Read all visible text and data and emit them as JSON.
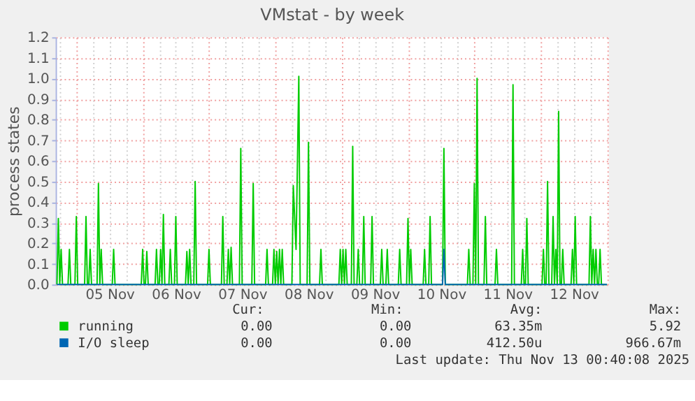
{
  "chart_data": {
    "type": "line",
    "title": "VMstat - by week",
    "ylabel": "process states",
    "xlim": [
      "2025-11-04T16:30",
      "2025-11-13T00:40"
    ],
    "xticks": [
      {
        "value": "2025-11-04T18:00",
        "label": null
      },
      {
        "value": "2025-11-05T00:00",
        "label": null
      },
      {
        "value": "2025-11-05T06:00",
        "label": null
      },
      {
        "value": "2025-11-05T12:00",
        "label": "05 Nov"
      },
      {
        "value": "2025-11-05T18:00",
        "label": null
      },
      {
        "value": "2025-11-06T00:00",
        "label": null
      },
      {
        "value": "2025-11-06T06:00",
        "label": null
      },
      {
        "value": "2025-11-06T12:00",
        "label": "06 Nov"
      },
      {
        "value": "2025-11-06T18:00",
        "label": null
      },
      {
        "value": "2025-11-07T00:00",
        "label": null
      },
      {
        "value": "2025-11-07T06:00",
        "label": null
      },
      {
        "value": "2025-11-07T12:00",
        "label": "07 Nov"
      },
      {
        "value": "2025-11-07T18:00",
        "label": null
      },
      {
        "value": "2025-11-08T00:00",
        "label": null
      },
      {
        "value": "2025-11-08T06:00",
        "label": null
      },
      {
        "value": "2025-11-08T12:00",
        "label": "08 Nov"
      },
      {
        "value": "2025-11-08T18:00",
        "label": null
      },
      {
        "value": "2025-11-09T00:00",
        "label": null
      },
      {
        "value": "2025-11-09T06:00",
        "label": null
      },
      {
        "value": "2025-11-09T12:00",
        "label": "09 Nov"
      },
      {
        "value": "2025-11-09T18:00",
        "label": null
      },
      {
        "value": "2025-11-10T00:00",
        "label": null
      },
      {
        "value": "2025-11-10T06:00",
        "label": null
      },
      {
        "value": "2025-11-10T12:00",
        "label": "10 Nov"
      },
      {
        "value": "2025-11-10T18:00",
        "label": null
      },
      {
        "value": "2025-11-11T00:00",
        "label": null
      },
      {
        "value": "2025-11-11T06:00",
        "label": null
      },
      {
        "value": "2025-11-11T12:00",
        "label": "11 Nov"
      },
      {
        "value": "2025-11-11T18:00",
        "label": null
      },
      {
        "value": "2025-11-12T00:00",
        "label": null
      },
      {
        "value": "2025-11-12T06:00",
        "label": null
      },
      {
        "value": "2025-11-12T12:00",
        "label": "12 Nov"
      },
      {
        "value": "2025-11-12T18:00",
        "label": null
      },
      {
        "value": "2025-11-13T00:00",
        "label": null
      }
    ],
    "ylim": [
      0,
      1.2
    ],
    "yticks": [
      {
        "value": 0,
        "label": "0.0"
      },
      0.1,
      0.2,
      0.3,
      0.4,
      0.5,
      0.6,
      0.7,
      0.8,
      0.9,
      {
        "value": 1,
        "label": "1.0"
      },
      1.1,
      1.2
    ],
    "grid": true,
    "legend": "bottom",
    "series": [
      {
        "name": "running",
        "color": "#00cc00",
        "x": [
          "2025-11-04T17:00",
          "2025-11-04T17:30",
          "2025-11-04T18:00",
          "2025-11-04T18:30",
          "2025-11-04T19:00",
          "2025-11-04T21:00",
          "2025-11-04T21:30",
          "2025-11-04T22:00",
          "2025-11-04T23:30",
          "2025-11-05T00:00",
          "2025-11-05T00:30",
          "2025-11-05T03:00",
          "2025-11-05T03:30",
          "2025-11-05T04:00",
          "2025-11-05T04:30",
          "2025-11-05T05:00",
          "2025-11-05T05:30",
          "2025-11-05T07:30",
          "2025-11-05T08:00",
          "2025-11-05T08:30",
          "2025-11-05T09:00",
          "2025-11-05T09:30",
          "2025-11-05T13:00",
          "2025-11-05T13:30",
          "2025-11-05T14:00",
          "2025-11-05T23:30",
          "2025-11-06T00:00",
          "2025-11-06T00:30",
          "2025-11-06T01:00",
          "2025-11-06T01:30",
          "2025-11-06T02:00",
          "2025-11-06T04:30",
          "2025-11-06T05:00",
          "2025-11-06T05:30",
          "2025-11-06T06:00",
          "2025-11-06T06:30",
          "2025-11-06T07:00",
          "2025-11-06T07:30",
          "2025-11-06T08:00",
          "2025-11-06T09:30",
          "2025-11-06T10:00",
          "2025-11-06T10:30",
          "2025-11-06T11:30",
          "2025-11-06T12:00",
          "2025-11-06T12:30",
          "2025-11-06T15:30",
          "2025-11-06T16:00",
          "2025-11-06T16:30",
          "2025-11-06T17:00",
          "2025-11-06T17:30",
          "2025-11-06T18:30",
          "2025-11-06T19:00",
          "2025-11-06T19:30",
          "2025-11-06T23:30",
          "2025-11-07T00:00",
          "2025-11-07T00:30",
          "2025-11-07T04:30",
          "2025-11-07T05:00",
          "2025-11-07T05:30",
          "2025-11-07T06:30",
          "2025-11-07T07:00",
          "2025-11-07T07:30",
          "2025-11-07T08:00",
          "2025-11-07T08:30",
          "2025-11-07T11:00",
          "2025-11-07T11:30",
          "2025-11-07T12:00",
          "2025-11-07T15:30",
          "2025-11-07T16:00",
          "2025-11-07T16:30",
          "2025-11-07T20:30",
          "2025-11-07T21:00",
          "2025-11-07T21:30",
          "2025-11-07T23:00",
          "2025-11-07T23:30",
          "2025-11-08T00:00",
          "2025-11-08T00:30",
          "2025-11-08T01:00",
          "2025-11-08T01:30",
          "2025-11-08T02:00",
          "2025-11-08T02:30",
          "2025-11-08T03:00",
          "2025-11-08T06:00",
          "2025-11-08T06:30",
          "2025-11-08T07:30",
          "2025-11-08T08:30",
          "2025-11-08T09:00",
          "2025-11-08T11:30",
          "2025-11-08T12:00",
          "2025-11-08T12:30",
          "2025-11-08T16:00",
          "2025-11-08T16:30",
          "2025-11-08T17:00",
          "2025-11-08T23:00",
          "2025-11-08T23:30",
          "2025-11-09T00:00",
          "2025-11-09T00:30",
          "2025-11-09T01:00",
          "2025-11-09T01:30",
          "2025-11-09T02:00",
          "2025-11-09T03:30",
          "2025-11-09T04:00",
          "2025-11-09T04:30",
          "2025-11-09T05:30",
          "2025-11-09T06:00",
          "2025-11-09T06:30",
          "2025-11-09T07:30",
          "2025-11-09T08:00",
          "2025-11-09T08:30",
          "2025-11-09T10:30",
          "2025-11-09T11:00",
          "2025-11-09T11:30",
          "2025-11-09T14:00",
          "2025-11-09T14:30",
          "2025-11-09T15:00",
          "2025-11-09T16:00",
          "2025-11-09T16:30",
          "2025-11-09T17:00",
          "2025-11-09T20:30",
          "2025-11-09T21:00",
          "2025-11-09T21:30",
          "2025-11-09T23:30",
          "2025-11-10T00:00",
          "2025-11-10T00:30",
          "2025-11-10T01:00",
          "2025-11-10T01:30",
          "2025-11-10T05:30",
          "2025-11-10T06:00",
          "2025-11-10T06:30",
          "2025-11-10T07:30",
          "2025-11-10T08:00",
          "2025-11-10T08:30",
          "2025-11-10T12:30",
          "2025-11-10T13:00",
          "2025-11-10T13:30",
          "2025-11-10T21:30",
          "2025-11-10T22:00",
          "2025-11-10T22:30",
          "2025-11-10T23:30",
          "2025-11-11T00:00",
          "2025-11-11T00:30",
          "2025-11-11T01:00",
          "2025-11-11T01:30",
          "2025-11-11T03:30",
          "2025-11-11T04:00",
          "2025-11-11T04:30",
          "2025-11-11T07:30",
          "2025-11-11T08:00",
          "2025-11-11T08:30",
          "2025-11-11T13:30",
          "2025-11-11T14:00",
          "2025-11-11T14:30",
          "2025-11-11T17:00",
          "2025-11-11T17:30",
          "2025-11-11T18:00",
          "2025-11-11T18:30",
          "2025-11-11T19:00",
          "2025-11-11T19:30",
          "2025-11-12T00:30",
          "2025-11-12T01:00",
          "2025-11-12T01:30",
          "2025-11-12T02:00",
          "2025-11-12T02:30",
          "2025-11-12T03:00",
          "2025-11-12T04:00",
          "2025-11-12T04:30",
          "2025-11-12T05:00",
          "2025-11-12T05:30",
          "2025-11-12T06:00",
          "2025-11-12T06:30",
          "2025-11-12T07:00",
          "2025-11-12T07:30",
          "2025-11-12T08:00",
          "2025-11-12T08:30",
          "2025-11-12T11:00",
          "2025-11-12T11:30",
          "2025-11-12T12:00",
          "2025-11-12T12:30",
          "2025-11-12T13:00",
          "2025-11-12T17:30",
          "2025-11-12T18:00",
          "2025-11-12T18:30",
          "2025-11-12T19:00",
          "2025-11-12T19:30",
          "2025-11-12T20:00",
          "2025-11-12T20:30",
          "2025-11-12T21:00",
          "2025-11-12T21:30",
          "2025-11-12T22:00",
          "2025-11-13T00:00"
        ],
        "values": [
          0,
          0.32,
          0,
          0.17,
          0,
          0,
          0.17,
          0,
          0,
          0.33,
          0,
          0,
          0.33,
          0,
          0,
          0.17,
          0,
          0,
          0.49,
          0,
          0.17,
          0,
          0,
          0.17,
          0,
          0,
          0.17,
          0,
          0,
          0.16,
          0,
          0,
          0.17,
          0,
          0,
          0.17,
          0,
          0.34,
          0,
          0,
          0.17,
          0,
          0,
          0.33,
          0,
          0,
          0.16,
          0,
          0.17,
          0,
          0,
          0.5,
          0,
          0,
          0.17,
          0,
          0,
          0.33,
          0,
          0,
          0.17,
          0,
          0.18,
          0,
          0,
          0.66,
          0,
          0,
          0.49,
          0,
          0,
          0.17,
          0,
          0,
          0.17,
          0,
          0.16,
          0,
          0.17,
          0,
          0.17,
          0,
          0,
          0.48,
          0.17,
          1.01,
          0,
          0,
          0.69,
          0,
          0,
          0.17,
          0,
          0,
          0.17,
          0,
          0.17,
          0,
          0.17,
          0,
          0,
          0.67,
          0,
          0,
          0.17,
          0,
          0,
          0.33,
          0,
          0,
          0.33,
          0,
          0,
          0.17,
          0,
          0,
          0.17,
          0,
          0,
          0.17,
          0,
          0,
          0.32,
          0,
          0.17,
          0,
          0,
          0.17,
          0,
          0,
          0.33,
          0,
          0,
          0.66,
          0,
          0,
          0.17,
          0,
          0,
          0.49,
          0,
          1.0,
          0,
          0,
          0.33,
          0,
          0,
          0.17,
          0,
          0,
          0.97,
          0,
          0,
          0.17,
          0,
          0,
          0.32,
          0,
          0,
          0.17,
          0,
          0,
          0.5,
          0,
          0,
          0.33,
          0,
          0.17,
          0,
          0.84,
          0,
          0,
          0.17,
          0,
          0,
          0.17,
          0,
          0.33,
          0,
          0,
          0.33,
          0,
          0.17,
          0,
          0.17,
          0,
          0,
          0.17,
          0,
          0
        ]
      },
      {
        "name": "I/O sleep",
        "color": "#0066b3",
        "x": [
          "2025-11-04T17:00",
          "2025-11-10T12:30",
          "2025-11-10T13:00",
          "2025-11-10T13:30",
          "2025-11-13T00:00"
        ],
        "values": [
          0,
          0,
          0.17,
          0,
          0
        ]
      }
    ],
    "annotations": [
      "Cur:",
      "Min:",
      "Avg:",
      "Max:",
      "0.00",
      "0.00",
      "63.35m",
      "5.92",
      "0.00",
      "0.00",
      "412.50u",
      "966.67m",
      "Last update: Thu Nov 13 00:40:08 2025"
    ]
  }
}
